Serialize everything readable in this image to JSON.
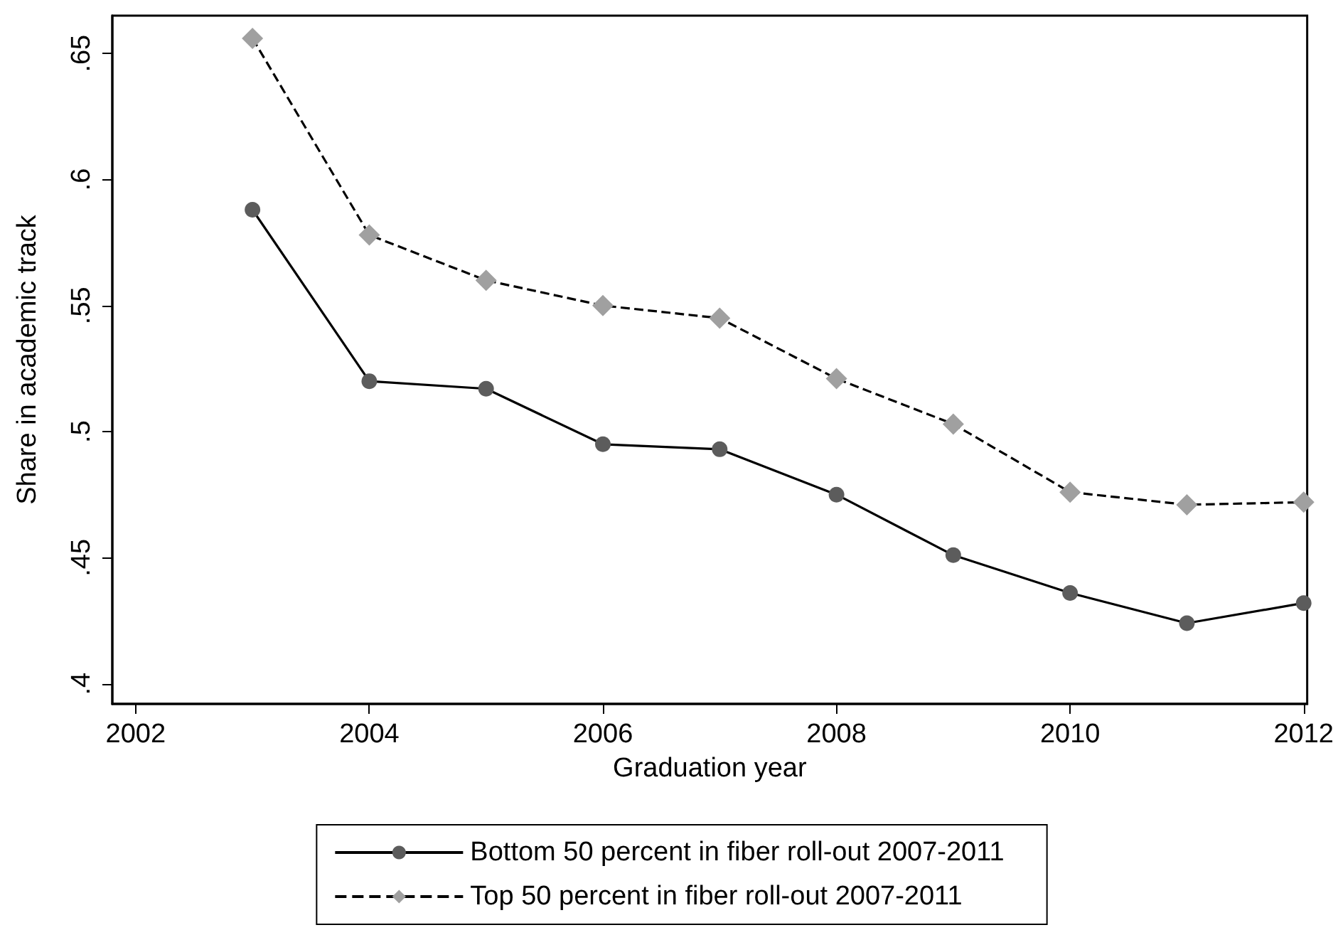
{
  "chart_data": {
    "type": "line",
    "xlabel": "Graduation year",
    "ylabel": "Share in academic track",
    "x": [
      2003,
      2004,
      2005,
      2006,
      2007,
      2008,
      2009,
      2010,
      2011,
      2012
    ],
    "series": [
      {
        "name": "Bottom 50 percent in fiber roll-out 2007-2011",
        "color": "#5c5c5c",
        "marker": "circle",
        "line_style": "solid",
        "values": [
          0.588,
          0.52,
          0.517,
          0.495,
          0.493,
          0.475,
          0.451,
          0.436,
          0.424,
          0.432
        ]
      },
      {
        "name": "Top 50 percent in fiber roll-out 2007-2011",
        "color": "#a0a0a0",
        "marker": "diamond",
        "line_style": "dashed",
        "values": [
          0.656,
          0.578,
          0.56,
          0.55,
          0.545,
          0.521,
          0.503,
          0.476,
          0.471,
          0.472
        ]
      }
    ],
    "xlim": [
      2001.8,
      2012.03
    ],
    "xticks": [
      2002,
      2004,
      2006,
      2008,
      2010,
      2012
    ],
    "ylim": [
      0.392,
      0.665
    ],
    "yticks": [
      {
        "value": 0.4,
        "label": ".4"
      },
      {
        "value": 0.45,
        "label": ".45"
      },
      {
        "value": 0.5,
        "label": ".5"
      },
      {
        "value": 0.55,
        "label": ".55"
      },
      {
        "value": 0.6,
        "label": ".6"
      },
      {
        "value": 0.65,
        "label": ".65"
      }
    ],
    "grid": false,
    "legend": "bottom"
  }
}
